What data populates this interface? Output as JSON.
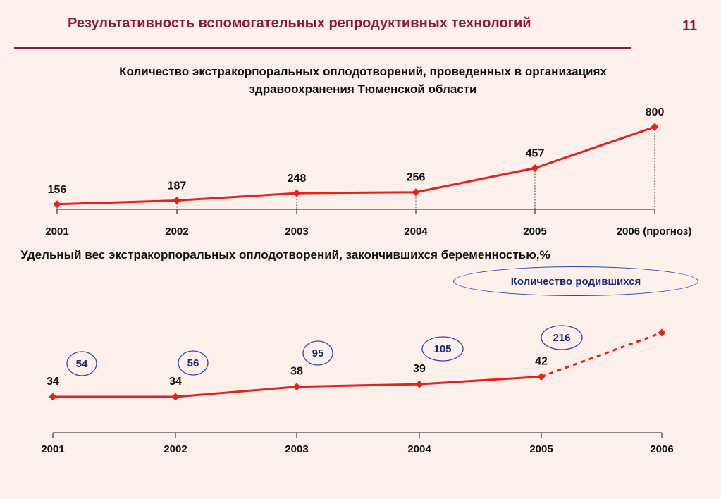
{
  "slide": {
    "title": "Результативность вспомогательных репродуктивных технологий",
    "page_number": "11",
    "legend_label": "Количество родившихся"
  },
  "colors": {
    "title": "#8b1a3a",
    "line": "#e8201c",
    "births_border": "#2b4aa8",
    "births_text": "#1a2a7a",
    "background": "#fdf0ea"
  },
  "chart_data": [
    {
      "type": "line",
      "title": "Количество экстракорпоральных оплодотворений, проведенных в организациях здравоохранения Тюменской области",
      "categories": [
        "2001",
        "2002",
        "2003",
        "2004",
        "2005",
        "2006 (прогноз)"
      ],
      "series": [
        {
          "values": [
            156,
            187,
            248,
            256,
            457,
            800
          ]
        }
      ],
      "ylim": [
        100,
        900
      ],
      "grid": false,
      "drop_lines": true
    },
    {
      "type": "line",
      "title": "Удельный вес экстракорпоральных оплодотворений, закончившихся беременностью,%",
      "categories": [
        "2001",
        "2002",
        "2003",
        "2004",
        "2005",
        "2006"
      ],
      "series": [
        {
          "values": [
            34,
            34,
            38,
            39,
            42,
            null
          ]
        }
      ],
      "forecast_point": {
        "category": "2006",
        "dashed": true
      },
      "births": {
        "label": "Количество родившихся",
        "values": [
          54,
          56,
          95,
          105,
          216
        ]
      },
      "grid": false
    }
  ]
}
